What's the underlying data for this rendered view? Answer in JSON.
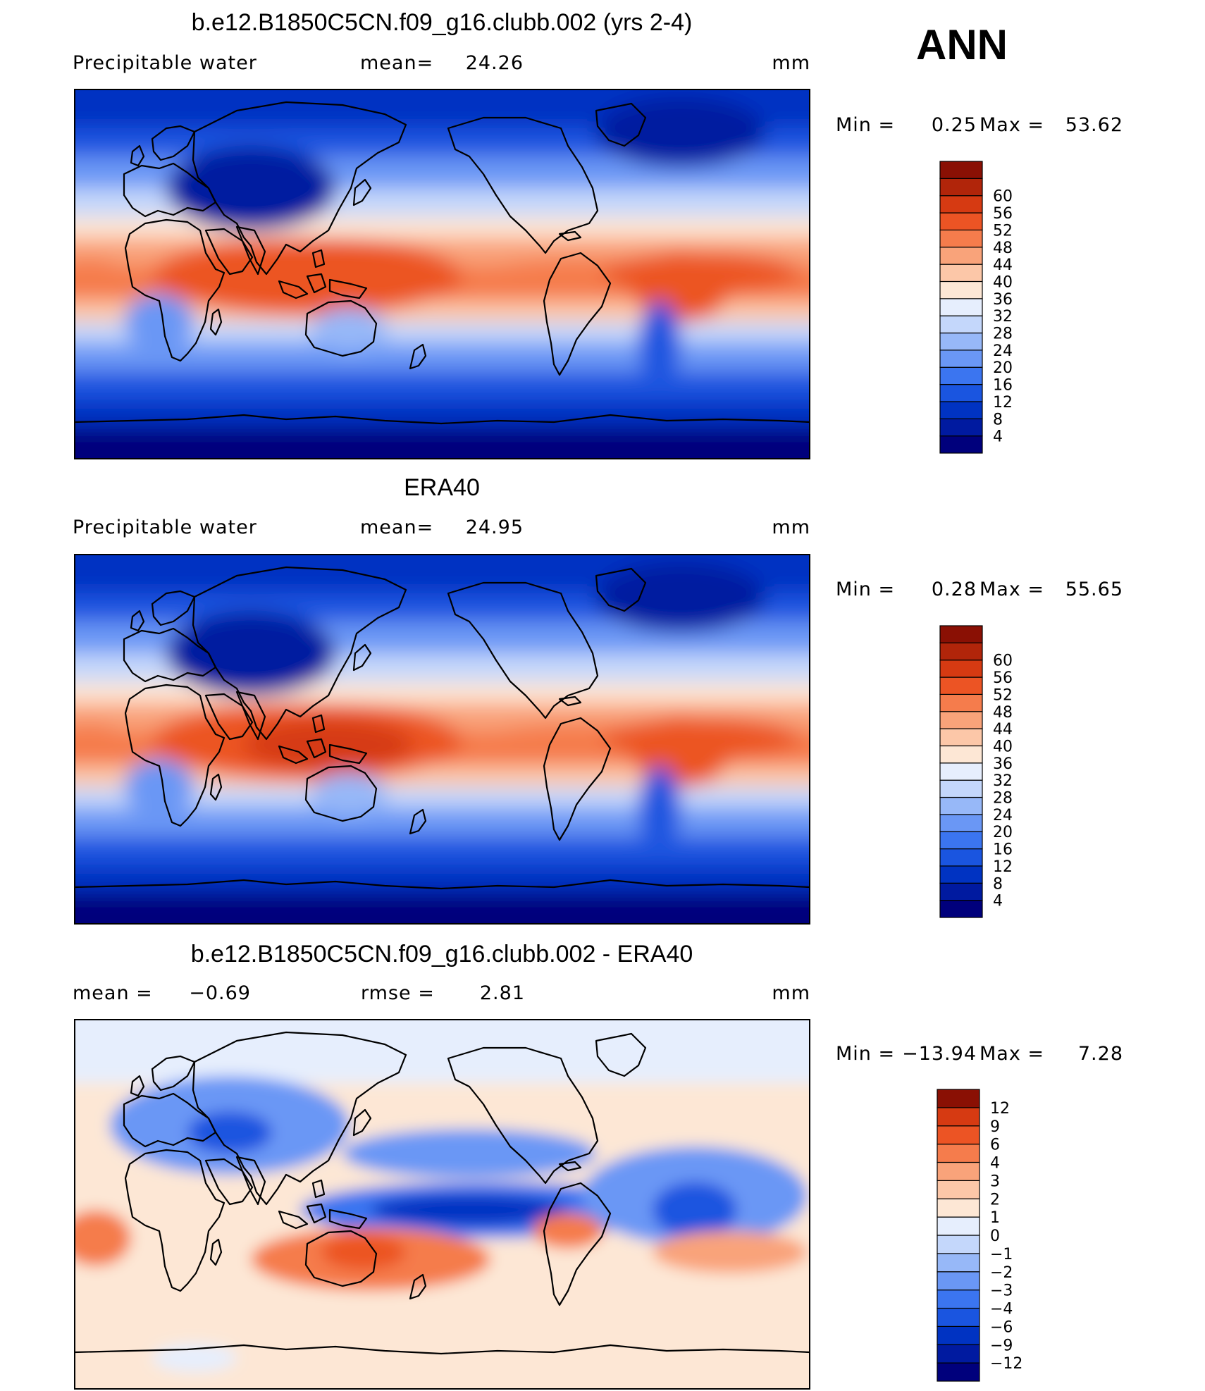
{
  "page": {
    "season_label": "ANN"
  },
  "colors": {
    "full_scale": [
      "#00007c",
      "#001aa0",
      "#0033c2",
      "#1a55e0",
      "#3b75f0",
      "#6a97f5",
      "#97b8f8",
      "#c4d7fb",
      "#e6eefd",
      "#fde7d5",
      "#fcc7a8",
      "#f9a37a",
      "#f57c4c",
      "#ec5424",
      "#d63a12",
      "#b1250a",
      "#8a1004"
    ],
    "diff_scale": [
      "#00007c",
      "#001aa0",
      "#0033c2",
      "#1a55e0",
      "#3b75f0",
      "#6a97f5",
      "#97b8f8",
      "#c4d7fb",
      "#e6eefd",
      "#fde7d5",
      "#fcc7a8",
      "#f9a37a",
      "#f57c4c",
      "#ec5424",
      "#d63a12",
      "#8a1004"
    ]
  },
  "chart_data": [
    {
      "type": "heatmap",
      "title": "b.e12.B1850C5CN.f09_g16.clubb.002 (yrs 2-4)",
      "variable": "Precipitable water",
      "mean_label": "mean=",
      "mean": "24.26",
      "units": "mm",
      "min_label": "Min  =",
      "min": "0.25",
      "max_label": "Max  =",
      "max": "53.62",
      "colorbar_levels": [
        "4",
        "8",
        "12",
        "16",
        "20",
        "24",
        "28",
        "32",
        "36",
        "40",
        "44",
        "48",
        "52",
        "56",
        "60"
      ]
    },
    {
      "type": "heatmap",
      "title": "ERA40",
      "variable": "Precipitable water",
      "mean_label": "mean=",
      "mean": "24.95",
      "units": "mm",
      "min_label": "Min  =",
      "min": "0.28",
      "max_label": "Max  =",
      "max": "55.65",
      "colorbar_levels": [
        "4",
        "8",
        "12",
        "16",
        "20",
        "24",
        "28",
        "32",
        "36",
        "40",
        "44",
        "48",
        "52",
        "56",
        "60"
      ]
    },
    {
      "type": "heatmap",
      "title": "b.e12.B1850C5CN.f09_g16.clubb.002 - ERA40",
      "mean_label": "mean =",
      "mean": "−0.69",
      "rmse_label": "rmse =",
      "rmse": "2.81",
      "units": "mm",
      "min_label": "Min  =",
      "min": "−13.94",
      "max_label": "Max  =",
      "max": "7.28",
      "colorbar_levels": [
        "−12",
        "−9",
        "−6",
        "−4",
        "−3",
        "−2",
        "−1",
        "0",
        "1",
        "2",
        "3",
        "4",
        "6",
        "9",
        "12"
      ]
    }
  ]
}
